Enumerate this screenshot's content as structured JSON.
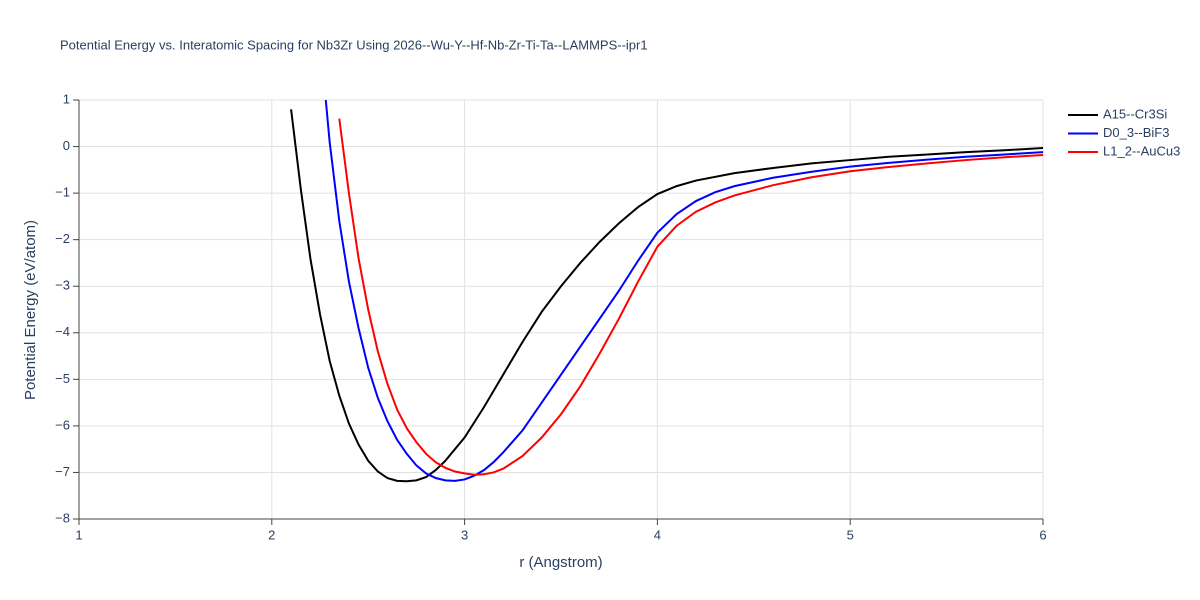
{
  "chart_data": {
    "type": "line",
    "title": "Potential Energy vs. Interatomic Spacing for Nb3Zr Using 2026--Wu-Y--Hf-Nb-Zr-Ti-Ta--LAMMPS--ipr1",
    "x_label": "r (Angstrom)",
    "y_label": "Potential Energy (eV/atom)",
    "xlim": [
      1,
      6
    ],
    "xticks": [
      1,
      2,
      3,
      4,
      5,
      6
    ],
    "ylim": [
      -8,
      1
    ],
    "yticks": [
      1,
      0,
      {
        "value": -1,
        "label": "−1"
      },
      {
        "value": -2,
        "label": "−2"
      },
      {
        "value": -3,
        "label": "−3"
      },
      {
        "value": -4,
        "label": "−4"
      },
      {
        "value": -5,
        "label": "−5"
      },
      {
        "value": -6,
        "label": "−6"
      },
      {
        "value": -7,
        "label": "−7"
      },
      {
        "value": -8,
        "label": "−8"
      }
    ],
    "grid": true,
    "legend": "right",
    "series": [
      {
        "name": "A15--Cr3Si",
        "color": "#000000",
        "x": [
          2.1,
          2.15,
          2.2,
          2.25,
          2.3,
          2.35,
          2.4,
          2.45,
          2.5,
          2.55,
          2.6,
          2.65,
          2.7,
          2.75,
          2.8,
          2.85,
          2.9,
          2.95,
          3.0,
          3.1,
          3.2,
          3.3,
          3.4,
          3.5,
          3.6,
          3.7,
          3.8,
          3.9,
          4.0,
          4.1,
          4.2,
          4.4,
          4.6,
          4.8,
          5.0,
          5.2,
          5.4,
          5.6,
          5.8,
          6.0
        ],
        "values": [
          0.8,
          -0.9,
          -2.4,
          -3.6,
          -4.6,
          -5.35,
          -5.95,
          -6.4,
          -6.75,
          -6.98,
          -7.12,
          -7.18,
          -7.19,
          -7.17,
          -7.1,
          -6.95,
          -6.75,
          -6.5,
          -6.25,
          -5.6,
          -4.9,
          -4.2,
          -3.55,
          -3.0,
          -2.5,
          -2.05,
          -1.65,
          -1.3,
          -1.02,
          -0.85,
          -0.73,
          -0.57,
          -0.46,
          -0.36,
          -0.29,
          -0.22,
          -0.17,
          -0.12,
          -0.08,
          -0.03
        ]
      },
      {
        "name": "D0_3--BiF3",
        "color": "#0000ff",
        "x": [
          2.28,
          2.3,
          2.35,
          2.4,
          2.45,
          2.5,
          2.55,
          2.6,
          2.65,
          2.7,
          2.75,
          2.8,
          2.85,
          2.9,
          2.95,
          3.0,
          3.05,
          3.1,
          3.15,
          3.2,
          3.3,
          3.4,
          3.5,
          3.6,
          3.7,
          3.8,
          3.9,
          4.0,
          4.1,
          4.2,
          4.3,
          4.4,
          4.6,
          4.8,
          5.0,
          5.2,
          5.4,
          5.6,
          5.8,
          6.0
        ],
        "values": [
          1.0,
          0.1,
          -1.6,
          -2.9,
          -3.9,
          -4.75,
          -5.4,
          -5.9,
          -6.3,
          -6.6,
          -6.85,
          -7.02,
          -7.12,
          -7.17,
          -7.18,
          -7.15,
          -7.07,
          -6.95,
          -6.78,
          -6.57,
          -6.1,
          -5.5,
          -4.9,
          -4.3,
          -3.7,
          -3.1,
          -2.45,
          -1.85,
          -1.45,
          -1.17,
          -0.98,
          -0.85,
          -0.67,
          -0.54,
          -0.43,
          -0.35,
          -0.28,
          -0.22,
          -0.17,
          -0.12
        ]
      },
      {
        "name": "L1_2--AuCu3",
        "color": "#ff0000",
        "x": [
          2.35,
          2.4,
          2.45,
          2.5,
          2.55,
          2.6,
          2.65,
          2.7,
          2.75,
          2.8,
          2.85,
          2.9,
          2.95,
          3.0,
          3.05,
          3.1,
          3.15,
          3.2,
          3.3,
          3.4,
          3.5,
          3.6,
          3.7,
          3.8,
          3.9,
          4.0,
          4.1,
          4.2,
          4.3,
          4.4,
          4.6,
          4.8,
          5.0,
          5.2,
          5.4,
          5.6,
          5.8,
          6.0
        ],
        "values": [
          0.6,
          -1.0,
          -2.4,
          -3.5,
          -4.4,
          -5.1,
          -5.65,
          -6.05,
          -6.35,
          -6.6,
          -6.78,
          -6.9,
          -6.98,
          -7.02,
          -7.05,
          -7.04,
          -7.0,
          -6.92,
          -6.65,
          -6.25,
          -5.75,
          -5.15,
          -4.45,
          -3.7,
          -2.9,
          -2.15,
          -1.7,
          -1.4,
          -1.2,
          -1.05,
          -0.83,
          -0.66,
          -0.53,
          -0.44,
          -0.36,
          -0.29,
          -0.23,
          -0.18
        ]
      }
    ]
  }
}
